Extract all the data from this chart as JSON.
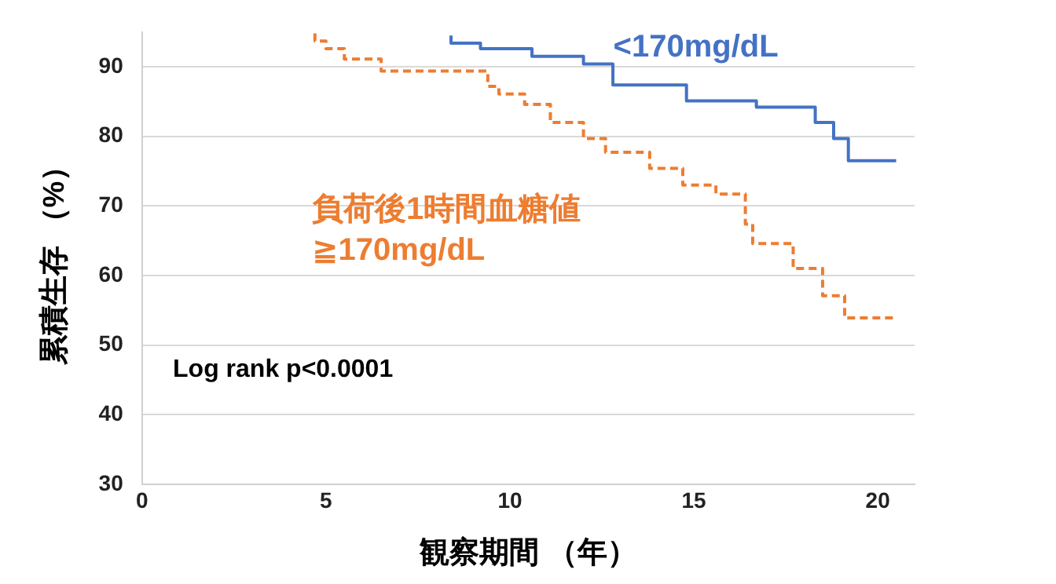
{
  "chart_data": {
    "type": "step",
    "xlabel": "観察期間 （年）",
    "ylabel": "累積生存 （%）",
    "xlim": [
      0,
      21
    ],
    "ylim": [
      30,
      95
    ],
    "xticks": [
      0,
      5,
      10,
      15,
      20
    ],
    "yticks": [
      30,
      40,
      50,
      60,
      70,
      80,
      90
    ],
    "grid": "y",
    "legend": false,
    "annotations": [
      "Log rank p<0.0001"
    ],
    "series": [
      {
        "name": "<170mg/dL",
        "color": "#4472c4",
        "line_style": "solid",
        "x": [
          8.4,
          9.2,
          10.6,
          12.0,
          12.8,
          14.8,
          16.7,
          17.5,
          18.3,
          18.8,
          19.2,
          19.8,
          20.5
        ],
        "values": [
          94.5,
          93.4,
          92.6,
          91.5,
          90.4,
          87.4,
          85.1,
          84.2,
          84.2,
          82.0,
          79.7,
          76.5,
          76.5
        ]
      },
      {
        "name": "負荷後1時間血糖値 ≧170mg/dL",
        "color": "#ed7d31",
        "line_style": "dashed",
        "x": [
          4.7,
          5.0,
          5.5,
          6.5,
          7.7,
          9.4,
          9.7,
          10.4,
          11.1,
          12.0,
          12.6,
          13.8,
          14.7,
          15.6,
          16.4,
          16.6,
          17.7,
          18.5,
          19.1,
          20.1,
          20.5
        ],
        "values": [
          94.8,
          93.7,
          92.6,
          91.1,
          89.4,
          89.4,
          87.2,
          86.1,
          84.6,
          82.0,
          79.7,
          77.7,
          75.4,
          73.0,
          71.7,
          67.4,
          64.6,
          61.0,
          57.1,
          53.9,
          53.9
        ]
      }
    ]
  }
}
